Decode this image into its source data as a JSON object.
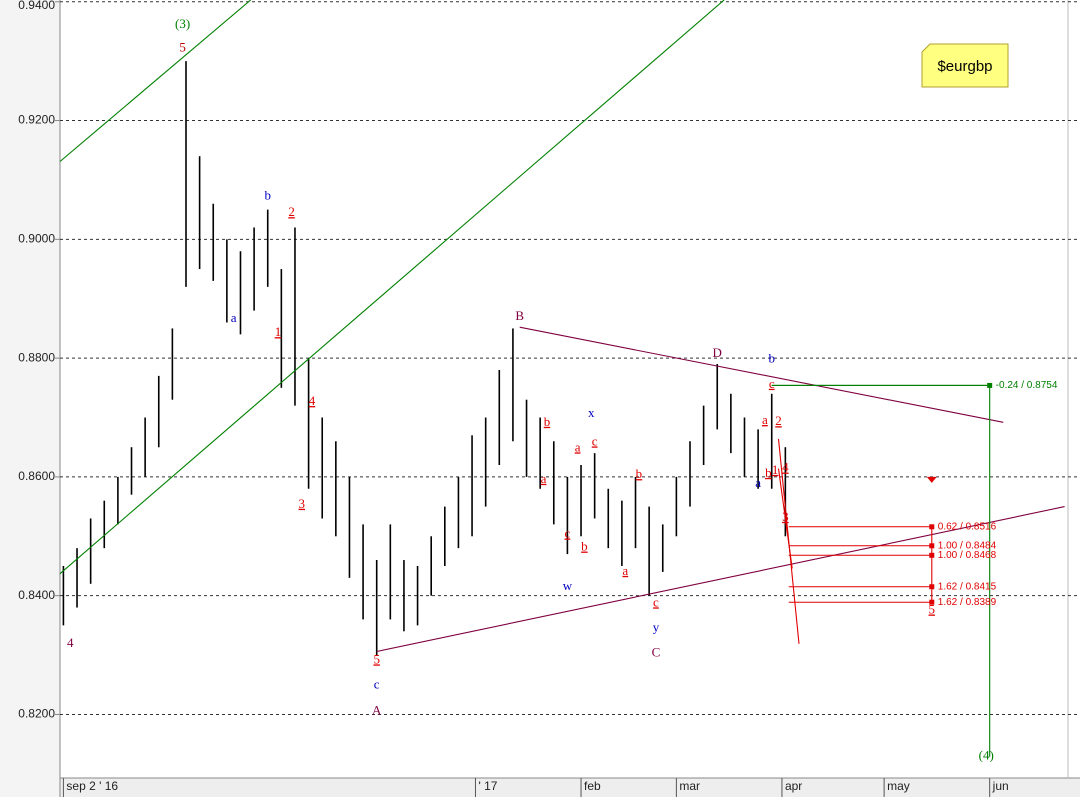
{
  "chart_data": {
    "type": "stock",
    "title": "$eurgbp",
    "color": "#000000",
    "grid": true,
    "xlim": [
      "2016-09-01",
      "2017-06-24"
    ],
    "ylim": [
      0.8093,
      0.9403
    ],
    "yticks": [
      {
        "value": 0.82,
        "label": "0.8200"
      },
      {
        "value": 0.84,
        "label": "0.8400"
      },
      {
        "value": 0.86,
        "label": "0.8600"
      },
      {
        "value": 0.88,
        "label": "0.8800"
      },
      {
        "value": 0.9,
        "label": "0.9000"
      },
      {
        "value": 0.92,
        "label": "0.9200"
      },
      {
        "value": 0.94,
        "label": "0.9400"
      }
    ],
    "xticks": [
      {
        "value": "2016-09-02",
        "label": "sep 2 ' 16"
      },
      {
        "value": "2017-01-01",
        "label": "' 17"
      },
      {
        "value": "2017-02-01",
        "label": "feb"
      },
      {
        "value": "2017-03-01",
        "label": "mar"
      },
      {
        "value": "2017-04-01",
        "label": "apr"
      },
      {
        "value": "2017-05-01",
        "label": "may"
      },
      {
        "value": "2017-06-01",
        "label": "jun"
      }
    ],
    "x": [
      "2016-09-02",
      "2016-09-06",
      "2016-09-10",
      "2016-09-14",
      "2016-09-18",
      "2016-09-22",
      "2016-09-26",
      "2016-09-30",
      "2016-10-04",
      "2016-10-08",
      "2016-10-12",
      "2016-10-16",
      "2016-10-20",
      "2016-10-24",
      "2016-10-28",
      "2016-11-01",
      "2016-11-05",
      "2016-11-09",
      "2016-11-13",
      "2016-11-17",
      "2016-11-21",
      "2016-11-25",
      "2016-11-29",
      "2016-12-03",
      "2016-12-07",
      "2016-12-11",
      "2016-12-15",
      "2016-12-19",
      "2016-12-23",
      "2016-12-27",
      "2016-12-31",
      "2017-01-04",
      "2017-01-08",
      "2017-01-12",
      "2017-01-16",
      "2017-01-20",
      "2017-01-24",
      "2017-01-28",
      "2017-02-01",
      "2017-02-05",
      "2017-02-09",
      "2017-02-13",
      "2017-02-17",
      "2017-02-21",
      "2017-02-25",
      "2017-03-01",
      "2017-03-05",
      "2017-03-09",
      "2017-03-13",
      "2017-03-17",
      "2017-03-21",
      "2017-03-25",
      "2017-03-29",
      "2017-04-02"
    ],
    "low": [
      0.835,
      0.838,
      0.842,
      0.848,
      0.852,
      0.857,
      0.86,
      0.865,
      0.873,
      0.892,
      0.895,
      0.893,
      0.886,
      0.884,
      0.888,
      0.892,
      0.875,
      0.872,
      0.858,
      0.853,
      0.85,
      0.843,
      0.836,
      0.83,
      0.836,
      0.834,
      0.835,
      0.84,
      0.845,
      0.848,
      0.85,
      0.855,
      0.862,
      0.866,
      0.86,
      0.858,
      0.852,
      0.847,
      0.85,
      0.853,
      0.848,
      0.845,
      0.848,
      0.84,
      0.844,
      0.85,
      0.855,
      0.862,
      0.868,
      0.864,
      0.86,
      0.858,
      0.858,
      0.85
    ],
    "high": [
      0.845,
      0.848,
      0.853,
      0.856,
      0.86,
      0.865,
      0.87,
      0.877,
      0.885,
      0.93,
      0.914,
      0.906,
      0.9,
      0.898,
      0.902,
      0.905,
      0.895,
      0.902,
      0.88,
      0.87,
      0.866,
      0.86,
      0.852,
      0.846,
      0.852,
      0.846,
      0.845,
      0.85,
      0.855,
      0.86,
      0.867,
      0.87,
      0.878,
      0.885,
      0.873,
      0.87,
      0.866,
      0.86,
      0.862,
      0.864,
      0.858,
      0.856,
      0.86,
      0.855,
      0.852,
      0.86,
      0.866,
      0.872,
      0.879,
      0.874,
      0.87,
      0.868,
      0.874,
      0.865
    ],
    "lines": [
      {
        "color": "#008000",
        "x": [
          "2016-09-01",
          "2016-10-27"
        ],
        "y": [
          0.9131,
          0.9403
        ]
      },
      {
        "color": "#008000",
        "x": [
          "2016-09-01",
          "2017-03-15"
        ],
        "y": [
          0.8437,
          0.9403
        ]
      },
      {
        "color": "#800040",
        "x": [
          "2017-01-14",
          "2017-06-05"
        ],
        "y": [
          0.8852,
          0.8692
        ]
      },
      {
        "color": "#800040",
        "x": [
          "2016-12-03",
          "2017-06-23"
        ],
        "y": [
          0.8306,
          0.855
        ]
      },
      {
        "color": "#e00000",
        "x": [
          "2017-03-31",
          "2017-04-06"
        ],
        "y": [
          0.8664,
          0.8319
        ]
      },
      {
        "color": "#e00000",
        "x": [
          "2017-03-31",
          "2017-04-04"
        ],
        "y": [
          0.8614,
          0.8446
        ]
      },
      {
        "color": "#008000",
        "x": [
          "2017-03-29",
          "2017-06-01",
          "2017-06-01"
        ],
        "y": [
          0.8754,
          0.8754,
          0.8129
        ]
      },
      {
        "color": "#e00000",
        "x": [
          "2017-05-15",
          "2017-05-15"
        ],
        "y": [
          0.8516,
          0.8389
        ]
      }
    ],
    "levels": [
      {
        "text": "-0.24 / 0.8754",
        "color": "#008000",
        "x": [
          "2017-03-29",
          "2017-06-01"
        ],
        "y": 0.8754
      },
      {
        "text": "0.62 / 0.8516",
        "color": "#e00000",
        "x": [
          "2017-04-03",
          "2017-05-15"
        ],
        "y": 0.8516
      },
      {
        "text": "1.00 / 0.8484",
        "color": "#e00000",
        "x": [
          "2017-04-03",
          "2017-05-15"
        ],
        "y": 0.8484
      },
      {
        "text": "1.00 / 0.8468",
        "color": "#e00000",
        "x": [
          "2017-04-03",
          "2017-05-15"
        ],
        "y": 0.8468
      },
      {
        "text": "1.62 / 0.8415",
        "color": "#e00000",
        "x": [
          "2017-04-03",
          "2017-05-15"
        ],
        "y": 0.8415
      },
      {
        "text": "1.62 / 0.8389",
        "color": "#e00000",
        "x": [
          "2017-04-03",
          "2017-05-15"
        ],
        "y": 0.8389
      }
    ],
    "annotations": [
      {
        "text": "(3)",
        "color": "#008000",
        "x": "2016-10-07",
        "y": 0.9361
      },
      {
        "text": "5",
        "color": "#c00000",
        "x": "2016-10-07",
        "y": 0.9321
      },
      {
        "text": "b",
        "color": "#0000c0",
        "x": "2016-11-01",
        "y": 0.9072
      },
      {
        "text": "a",
        "color": "#0000c0",
        "x": "2016-10-22",
        "y": 0.8866
      },
      {
        "text": "2",
        "color": "#e00000",
        "x": "2016-11-08",
        "y": 0.9044
      },
      {
        "text": "1",
        "color": "#e00000",
        "x": "2016-11-04",
        "y": 0.8842
      },
      {
        "text": "4",
        "color": "#e00000",
        "x": "2016-11-14",
        "y": 0.8726
      },
      {
        "text": "3",
        "color": "#e00000",
        "x": "2016-11-11",
        "y": 0.8553
      },
      {
        "text": "4",
        "color": "#800040",
        "x": "2016-09-04",
        "y": 0.8319
      },
      {
        "text": "5",
        "color": "#e00000",
        "x": "2016-12-03",
        "y": 0.8291
      },
      {
        "text": "c",
        "color": "#0000c0",
        "x": "2016-12-03",
        "y": 0.8249
      },
      {
        "text": "A",
        "color": "#800040",
        "x": "2016-12-03",
        "y": 0.8205
      },
      {
        "text": "B",
        "color": "#800040",
        "x": "2017-01-14",
        "y": 0.8869
      },
      {
        "text": "x",
        "color": "#0000c0",
        "x": "2017-02-04",
        "y": 0.8706
      },
      {
        "text": "b",
        "color": "#e00000",
        "x": "2017-01-22",
        "y": 0.8691
      },
      {
        "text": "a",
        "color": "#e00000",
        "x": "2017-01-21",
        "y": 0.8595
      },
      {
        "text": "c",
        "color": "#e00000",
        "x": "2017-01-28",
        "y": 0.8503
      },
      {
        "text": "b",
        "color": "#e00000",
        "x": "2017-02-02",
        "y": 0.8481
      },
      {
        "text": "w",
        "color": "#0000c0",
        "x": "2017-01-28",
        "y": 0.8415
      },
      {
        "text": "a",
        "color": "#e00000",
        "x": "2017-01-31",
        "y": 0.8648
      },
      {
        "text": "c",
        "color": "#e00000",
        "x": "2017-02-05",
        "y": 0.8658
      },
      {
        "text": "b",
        "color": "#e00000",
        "x": "2017-02-18",
        "y": 0.8603
      },
      {
        "text": "a",
        "color": "#e00000",
        "x": "2017-02-14",
        "y": 0.844
      },
      {
        "text": "c",
        "color": "#e00000",
        "x": "2017-02-23",
        "y": 0.8387
      },
      {
        "text": "y",
        "color": "#0000c0",
        "x": "2017-02-23",
        "y": 0.8345
      },
      {
        "text": "C",
        "color": "#800040",
        "x": "2017-02-23",
        "y": 0.8303
      },
      {
        "text": "D",
        "color": "#800040",
        "x": "2017-03-13",
        "y": 0.8807
      },
      {
        "text": "b",
        "color": "#0000c0",
        "x": "2017-03-29",
        "y": 0.8798
      },
      {
        "text": "c",
        "color": "#e00000",
        "x": "2017-03-29",
        "y": 0.8755
      },
      {
        "text": "a",
        "color": "#e00000",
        "x": "2017-03-27",
        "y": 0.8694
      },
      {
        "text": "2",
        "color": "#e00000",
        "x": "2017-03-31",
        "y": 0.8692
      },
      {
        "text": "b",
        "color": "#e00000",
        "x": "2017-03-28",
        "y": 0.8605
      },
      {
        "text": "1",
        "color": "#e00000",
        "x": "2017-03-30",
        "y": 0.861
      },
      {
        "text": "a",
        "color": "#0000c0",
        "x": "2017-03-25",
        "y": 0.8588
      },
      {
        "text": "4",
        "color": "#e00000",
        "x": "2017-04-02",
        "y": 0.8614
      },
      {
        "text": "3",
        "color": "#e00000",
        "x": "2017-04-02",
        "y": 0.8531
      },
      {
        "text": "5",
        "color": "#e00000",
        "x": "2017-05-15",
        "y": 0.8375
      },
      {
        "text": "(4)",
        "color": "#008000",
        "x": "2017-05-31",
        "y": 0.8129
      }
    ],
    "marker": {
      "color": "#e00000",
      "x": "2017-05-15",
      "y": 0.8595
    }
  }
}
